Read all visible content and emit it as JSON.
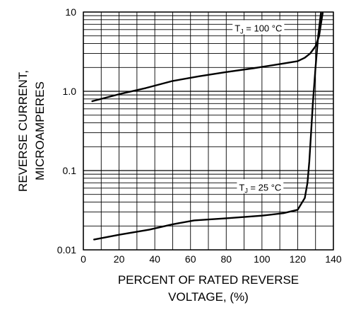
{
  "chart_data": {
    "type": "line",
    "title": "",
    "xlabel": [
      "PERCENT OF RATED REVERSE",
      "VOLTAGE, (%)"
    ],
    "ylabel": [
      "REVERSE CURRENT,",
      "MICROAMPERES"
    ],
    "xlim": [
      0,
      140
    ],
    "ylim": [
      0.01,
      10
    ],
    "yscale": "log",
    "x_ticks": [
      0,
      20,
      40,
      60,
      80,
      100,
      120,
      140
    ],
    "y_ticks": [
      {
        "value": 10,
        "label": "10"
      },
      {
        "value": 1,
        "label": "1.0"
      },
      {
        "value": 0.1,
        "label": "0.1"
      },
      {
        "value": 0.01,
        "label": "0.01"
      }
    ],
    "grid": true,
    "series": [
      {
        "name": "TJ = 100 °C",
        "label_main": "T",
        "label_sub": "J",
        "label_rest": " = 100 °C",
        "label_at": {
          "x": 98,
          "y": 6.3
        },
        "x": [
          5,
          20,
          35,
          50,
          65,
          80,
          95,
          110,
          120,
          124,
          127,
          130,
          132,
          133,
          134
        ],
        "y": [
          0.75,
          0.92,
          1.1,
          1.35,
          1.55,
          1.75,
          1.95,
          2.2,
          2.4,
          2.65,
          3.0,
          3.7,
          5.0,
          7.0,
          9.7
        ]
      },
      {
        "name": "TJ = 25 °C",
        "label_main": "T",
        "label_sub": "J",
        "label_rest": " = 25 °C",
        "label_at": {
          "x": 99,
          "y": 0.062
        },
        "x": [
          6,
          20,
          37,
          50,
          62,
          80,
          100,
          112,
          120,
          124,
          125.5,
          126.5,
          127.5,
          128.5,
          130,
          131.5,
          133
        ],
        "y": [
          0.0135,
          0.0155,
          0.018,
          0.021,
          0.0235,
          0.025,
          0.027,
          0.029,
          0.032,
          0.045,
          0.07,
          0.13,
          0.3,
          0.7,
          2.0,
          5.0,
          9.7
        ]
      }
    ]
  }
}
